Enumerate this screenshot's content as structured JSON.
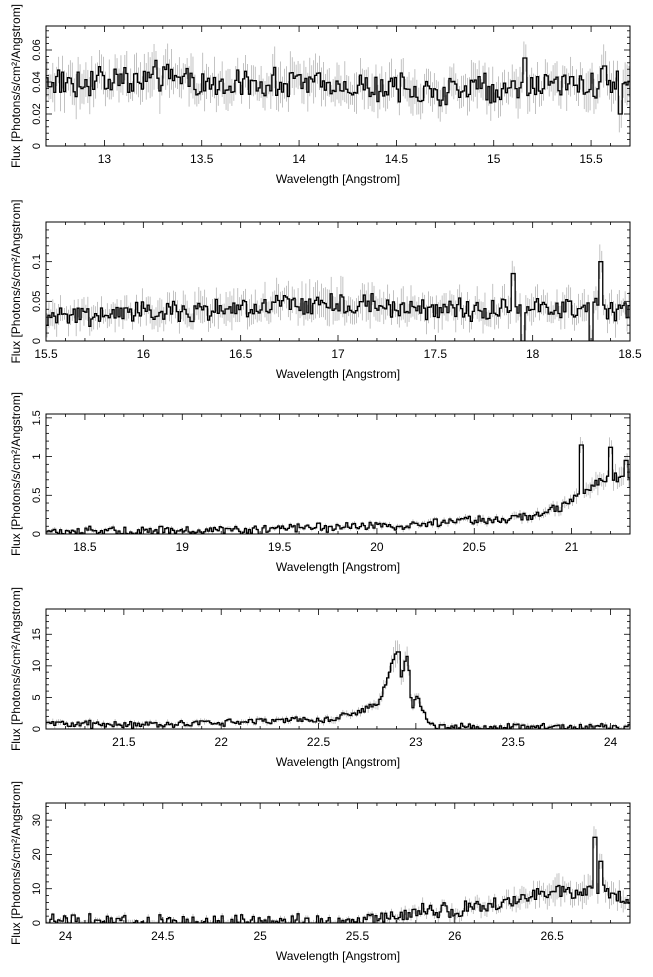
{
  "colors": {
    "axis": "#000000",
    "step": "#000000",
    "error_bar": "#b3b3b3",
    "background": "#ffffff"
  },
  "chart_data": [
    {
      "type": "line",
      "subtype": "step-with-error-bars",
      "xlabel": "Wavelength [Angstrom]",
      "ylabel": "Flux [Photons/s/cm²/Angstrom]",
      "xlim": [
        12.7,
        15.7
      ],
      "ylim": [
        0,
        0.075
      ],
      "xticks": [
        13,
        13.5,
        14,
        14.5,
        15,
        15.5
      ],
      "xtick_labels": [
        "13",
        "13.5",
        "14",
        "14.5",
        "15",
        "15.5"
      ],
      "yticks": [
        0,
        0.02,
        0.04,
        0.06
      ],
      "ytick_labels": [
        "0",
        "0.02",
        "0.04",
        "0.06"
      ],
      "bin_width": 0.01,
      "anchors": [
        [
          12.7,
          0.04
        ],
        [
          13.0,
          0.041
        ],
        [
          13.3,
          0.043
        ],
        [
          13.6,
          0.037
        ],
        [
          13.9,
          0.04
        ],
        [
          14.2,
          0.038
        ],
        [
          14.5,
          0.036
        ],
        [
          14.8,
          0.035
        ],
        [
          15.1,
          0.037
        ],
        [
          15.4,
          0.038
        ],
        [
          15.7,
          0.04
        ]
      ],
      "noise": 0.008,
      "error": 0.01,
      "features": [
        [
          15.16,
          0.055
        ],
        [
          15.57,
          0.05
        ],
        [
          15.65,
          0.02
        ]
      ]
    },
    {
      "type": "line",
      "subtype": "step-with-error-bars",
      "xlabel": "Wavelength [Angstrom]",
      "ylabel": "Flux [Photons/s/cm²/Angstrom]",
      "xlim": [
        15.5,
        18.5
      ],
      "ylim": [
        0,
        0.15
      ],
      "xticks": [
        15.5,
        16,
        16.5,
        17,
        17.5,
        18,
        18.5
      ],
      "xtick_labels": [
        "15.5",
        "16",
        "16.5",
        "17",
        "17.5",
        "18",
        "18.5"
      ],
      "yticks": [
        0,
        0.05,
        0.1
      ],
      "ytick_labels": [
        "0",
        "0.05",
        "0.1"
      ],
      "bin_width": 0.01,
      "anchors": [
        [
          15.5,
          0.032
        ],
        [
          16.0,
          0.035
        ],
        [
          16.5,
          0.04
        ],
        [
          16.8,
          0.045
        ],
        [
          17.0,
          0.05
        ],
        [
          17.3,
          0.04
        ],
        [
          17.6,
          0.04
        ],
        [
          18.0,
          0.04
        ],
        [
          18.5,
          0.04
        ]
      ],
      "noise": 0.012,
      "error": 0.018,
      "features": [
        [
          17.9,
          0.085
        ],
        [
          18.35,
          0.1
        ],
        [
          17.95,
          0.0
        ],
        [
          18.3,
          0.0
        ]
      ]
    },
    {
      "type": "line",
      "subtype": "step-with-error-bars",
      "xlabel": "Wavelength [Angstrom]",
      "ylabel": "Flux [Photons/s/cm²/Angstrom]",
      "xlim": [
        18.3,
        21.3
      ],
      "ylim": [
        0,
        1.55
      ],
      "xticks": [
        18.5,
        19,
        19.5,
        20,
        20.5,
        21
      ],
      "xtick_labels": [
        "18.5",
        "19",
        "19.5",
        "20",
        "20.5",
        "21"
      ],
      "yticks": [
        0,
        0.5,
        1,
        1.5
      ],
      "ytick_labels": [
        "0",
        "0.5",
        "1",
        "1.5"
      ],
      "bin_width": 0.01,
      "anchors": [
        [
          18.3,
          0.03
        ],
        [
          18.8,
          0.04
        ],
        [
          19.3,
          0.05
        ],
        [
          19.6,
          0.07
        ],
        [
          19.9,
          0.1
        ],
        [
          20.2,
          0.12
        ],
        [
          20.5,
          0.18
        ],
        [
          20.8,
          0.22
        ],
        [
          20.95,
          0.35
        ],
        [
          21.1,
          0.6
        ],
        [
          21.2,
          0.75
        ],
        [
          21.3,
          0.7
        ]
      ],
      "noise": 0.05,
      "error": 0.1,
      "features": [
        [
          21.05,
          1.15
        ],
        [
          21.2,
          1.12
        ],
        [
          21.28,
          0.95
        ]
      ]
    },
    {
      "type": "line",
      "subtype": "step-with-error-bars",
      "xlabel": "Wavelength [Angstrom]",
      "ylabel": "Flux [Photons/s/cm²/Angstrom]",
      "xlim": [
        21.1,
        24.1
      ],
      "ylim": [
        0,
        19
      ],
      "xticks": [
        21.5,
        22,
        22.5,
        23,
        23.5,
        24
      ],
      "xtick_labels": [
        "21.5",
        "22",
        "22.5",
        "23",
        "23.5",
        "24"
      ],
      "yticks": [
        0,
        5,
        10,
        15
      ],
      "ytick_labels": [
        "0",
        "5",
        "10",
        "15"
      ],
      "bin_width": 0.01,
      "anchors": [
        [
          21.1,
          0.8
        ],
        [
          21.6,
          0.6
        ],
        [
          22.0,
          1.0
        ],
        [
          22.3,
          1.4
        ],
        [
          22.5,
          1.2
        ],
        [
          22.7,
          2.5
        ],
        [
          22.8,
          4.0
        ],
        [
          22.85,
          7.0
        ],
        [
          22.88,
          11.0
        ],
        [
          22.9,
          12.0
        ],
        [
          22.92,
          8.0
        ],
        [
          22.94,
          10.0
        ],
        [
          22.96,
          11.0
        ],
        [
          22.98,
          3.0
        ],
        [
          23.0,
          5.0
        ],
        [
          23.04,
          3.0
        ],
        [
          23.07,
          0.5
        ],
        [
          23.3,
          0.3
        ],
        [
          24.1,
          0.2
        ]
      ],
      "noise": 0.5,
      "error": 1.5,
      "features": [
        [
          22.91,
          12.2
        ],
        [
          22.955,
          11.5
        ]
      ]
    },
    {
      "type": "line",
      "subtype": "step-with-error-bars",
      "xlabel": "Wavelength [Angstrom]",
      "ylabel": "Flux [Photons/s/cm²/Angstrom]",
      "xlim": [
        23.9,
        26.9
      ],
      "ylim": [
        0,
        35
      ],
      "xticks": [
        24,
        24.5,
        25,
        25.5,
        26,
        26.5
      ],
      "xtick_labels": [
        "24",
        "24.5",
        "25",
        "25.5",
        "26",
        "26.5"
      ],
      "yticks": [
        0,
        10,
        20,
        30
      ],
      "ytick_labels": [
        "0",
        "10",
        "20",
        "30"
      ],
      "bin_width": 0.01,
      "anchors": [
        [
          23.9,
          0.1
        ],
        [
          24.5,
          0.2
        ],
        [
          25.0,
          0.5
        ],
        [
          25.4,
          0.5
        ],
        [
          25.6,
          1.0
        ],
        [
          25.8,
          3.0
        ],
        [
          26.0,
          4.0
        ],
        [
          26.2,
          5.0
        ],
        [
          26.4,
          8.0
        ],
        [
          26.5,
          10.0
        ],
        [
          26.6,
          8.0
        ],
        [
          26.7,
          10.0
        ],
        [
          26.8,
          8.0
        ],
        [
          26.9,
          7.0
        ]
      ],
      "noise": 2.0,
      "error": 3.0,
      "features": [
        [
          26.72,
          25.0
        ],
        [
          26.75,
          18.0
        ]
      ]
    }
  ]
}
